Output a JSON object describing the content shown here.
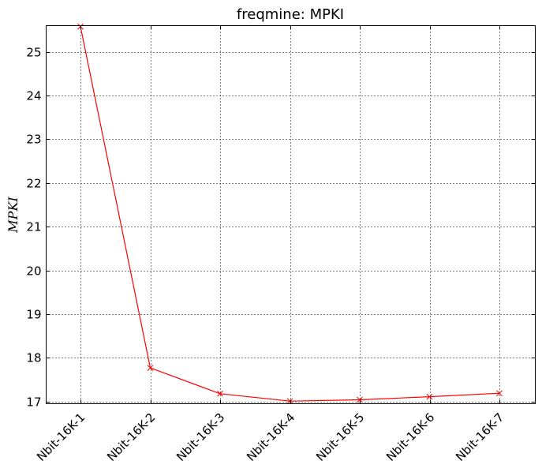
{
  "chart_data": {
    "type": "line",
    "title": "freqmine: MPKI",
    "xlabel": "",
    "ylabel": "MPKI",
    "categories": [
      "Nbit-16K-1",
      "Nbit-16K-2",
      "Nbit-16K-3",
      "Nbit-16K-4",
      "Nbit-16K-5",
      "Nbit-16K-6",
      "Nbit-16K-7"
    ],
    "series": [
      {
        "values": [
          25.58,
          17.77,
          17.18,
          17.01,
          17.04,
          17.11,
          17.19
        ],
        "color": "#ff0000",
        "marker": "x"
      }
    ],
    "ylim": [
      16.95,
      25.6
    ],
    "yticks": [
      17,
      18,
      19,
      20,
      21,
      22,
      23,
      24,
      25
    ],
    "grid": true,
    "legend": "none"
  }
}
